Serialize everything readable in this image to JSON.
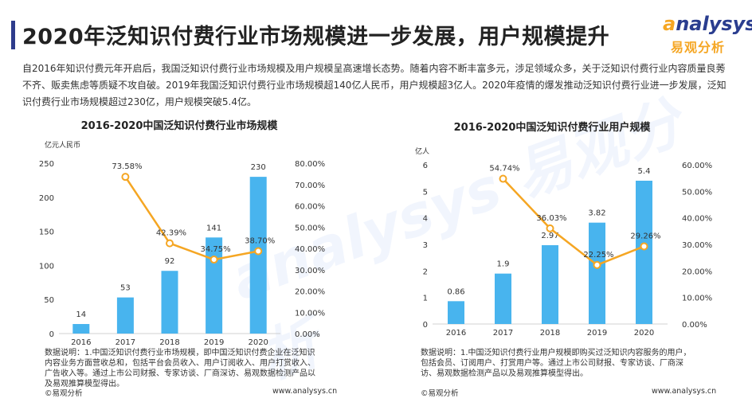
{
  "header": {
    "title": "2020年泛知识付费行业市场规模进一步发展，用户规模提升",
    "logo_en_a": "a",
    "logo_en_rest": "nalysys",
    "logo_cn": "易观分析"
  },
  "intro": "自2016年知识付费元年开启后，我国泛知识付费行业市场规模及用户规模呈高速增长态势。随着内容不断丰富多元，涉足领域众多，关于泛知识付费行业内容质量良莠不齐、贩卖焦虑等质疑不攻自破。2019年我国泛知识付费行业市场规模超140亿人民币，用户规模超3亿人。2020年疫情的爆发推动泛知识付费行业进一步发展，泛知识付费行业市场规模超过230亿，用户规模突破5.4亿。",
  "watermark": "analysys 易观分析",
  "chart_data": [
    {
      "type": "bar",
      "title": "2016-2020中国泛知识付费行业市场规模",
      "ylabel": "亿元人民币",
      "categories": [
        "2016",
        "2017",
        "2018",
        "2019",
        "2020"
      ],
      "series": [
        {
          "values": [
            14,
            53,
            92,
            141,
            230
          ],
          "data_labels": [
            "14",
            "53",
            "92",
            "141",
            "230"
          ]
        },
        {
          "values": [
            null,
            73.58,
            42.39,
            34.75,
            38.7
          ],
          "data_labels": [
            "",
            "73.58%",
            "42.39%",
            "34.75%",
            "38.70%"
          ],
          "axis": "right"
        }
      ],
      "ylim": [
        0,
        250
      ],
      "yticks": [
        "0",
        "50",
        "100",
        "150",
        "200",
        "250"
      ],
      "y2lim": [
        0,
        80
      ],
      "y2ticks": [
        "0.00%",
        "10.00%",
        "20.00%",
        "30.00%",
        "40.00%",
        "50.00%",
        "60.00%",
        "70.00%",
        "80.00%"
      ],
      "colors": {
        "bar": "#48b4ee",
        "line": "#f5a623"
      }
    },
    {
      "type": "bar",
      "title": "2016-2020中国泛知识付费行业用户规模",
      "ylabel": "亿人",
      "categories": [
        "2016",
        "2017",
        "2018",
        "2019",
        "2020"
      ],
      "series": [
        {
          "values": [
            0.86,
            1.9,
            2.97,
            3.82,
            5.4
          ],
          "data_labels": [
            "0.86",
            "1.9",
            "2.97",
            "3.82",
            "5.4"
          ]
        },
        {
          "values": [
            null,
            54.74,
            36.03,
            22.25,
            29.26
          ],
          "data_labels": [
            "",
            "54.74%",
            "36.03%",
            "22.25%",
            "29.26%"
          ],
          "axis": "right"
        }
      ],
      "ylim": [
        0,
        6
      ],
      "yticks": [
        "0",
        "1",
        "2",
        "3",
        "4",
        "5",
        "6"
      ],
      "y2lim": [
        0,
        60
      ],
      "y2ticks": [
        "0.00%",
        "10.00%",
        "20.00%",
        "30.00%",
        "40.00%",
        "50.00%",
        "60.00%"
      ],
      "colors": {
        "bar": "#48b4ee",
        "line": "#f5a623"
      }
    }
  ],
  "notes": {
    "left": "数据说明：1.中国泛知识付费行业市场规模，即中国泛知识付费企业在泛知识内容业务方面营收总和，包括平台会员收入、用户订阅收入、用户打赏收入、广告收入等。通过上市公司财报、专家访谈、厂商深访、易观数据检测产品以及易观推算模型得出。",
    "right": "数据说明：1.中国泛知识付费行业用户规模即购买过泛知识内容服务的用户，包括会员、订阅用户、打赏用户等。通过上市公司财报、专家访谈、厂商深访、易观数据检测产品以及易观推算模型得出。"
  },
  "footer": {
    "left_copyright": "©易观分析",
    "left_url": "www.analysys.cn",
    "right_copyright": "©易观分析",
    "right_url": "www.analysys.cn"
  }
}
